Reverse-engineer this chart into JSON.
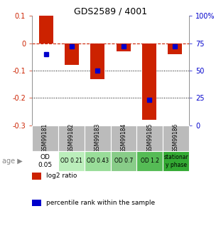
{
  "title": "GDS2589 / 4001",
  "samples": [
    "GSM99181",
    "GSM99182",
    "GSM99183",
    "GSM99184",
    "GSM99185",
    "GSM99186"
  ],
  "log2_ratios": [
    0.1,
    -0.08,
    -0.13,
    -0.03,
    -0.28,
    -0.04
  ],
  "percentile_ranks": [
    65,
    72,
    50,
    72,
    23,
    72
  ],
  "bar_color": "#cc2200",
  "dot_color": "#0000cc",
  "ylim_left": [
    -0.3,
    0.1
  ],
  "ylim_right": [
    0,
    100
  ],
  "yticks_left": [
    -0.3,
    -0.2,
    -0.1,
    0.0,
    0.1
  ],
  "yticks_right": [
    0,
    25,
    50,
    75,
    100
  ],
  "dotted_lines": [
    -0.1,
    -0.2
  ],
  "age_labels": [
    "OD\n0.05",
    "OD 0.21",
    "OD 0.43",
    "OD 0.7",
    "OD 1.2",
    "stationar\ny phase"
  ],
  "age_bg_colors": [
    "#ffffff",
    "#bbeebb",
    "#99dd99",
    "#88cc88",
    "#55bb55",
    "#33aa33"
  ],
  "sample_bg_color": "#bbbbbb",
  "legend_items": [
    {
      "color": "#cc2200",
      "label": "log2 ratio"
    },
    {
      "color": "#0000cc",
      "label": "percentile rank within the sample"
    }
  ]
}
